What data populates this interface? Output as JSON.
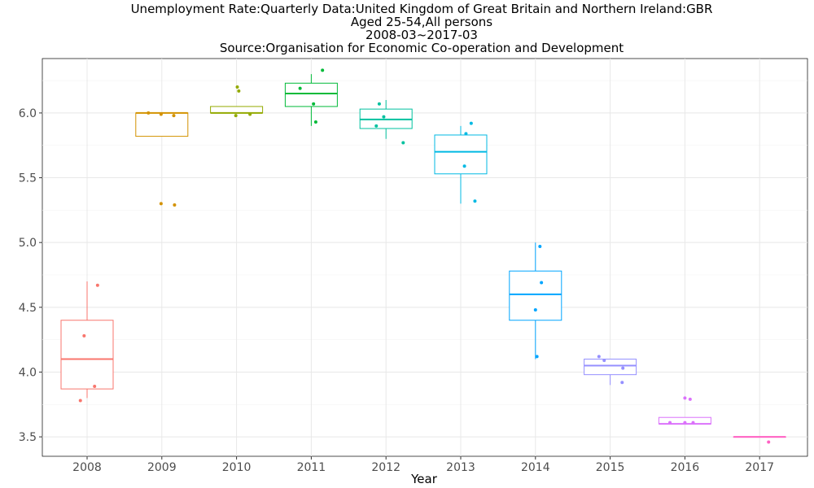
{
  "chart_data": {
    "type": "boxplot",
    "title_lines": [
      "Unemployment Rate:Quarterly Data:United Kingdom of Great Britain and Northern Ireland:GBR",
      "Aged 25-54,All persons",
      "2008-03~2017-03",
      "Source:Organisation for Economic Co-operation and Development"
    ],
    "xlabel": "Year",
    "ylabel": "",
    "ylim": [
      3.35,
      6.42
    ],
    "yticks": [
      3.5,
      4.0,
      4.5,
      5.0,
      5.5,
      6.0
    ],
    "ytick_labels": [
      "3.5",
      "4.0",
      "4.5",
      "5.0",
      "5.5",
      "6.0"
    ],
    "grid": true,
    "legend": "none",
    "categories": [
      "2008",
      "2009",
      "2010",
      "2011",
      "2012",
      "2013",
      "2014",
      "2015",
      "2016",
      "2017"
    ],
    "colors": [
      "#F8766D",
      "#D39200",
      "#93AA00",
      "#00BA38",
      "#00C19F",
      "#00B9E3",
      "#00A5FF",
      "#9590FF",
      "#DB72FB",
      "#FF61C3"
    ],
    "boxes": [
      {
        "year": "2008",
        "whisker_low": 3.8,
        "q1": 3.87,
        "median": 4.1,
        "q3": 4.4,
        "whisker_high": 4.7
      },
      {
        "year": "2009",
        "whisker_low": 5.82,
        "q1": 5.82,
        "median": 6.0,
        "q3": 6.0,
        "whisker_high": 6.0
      },
      {
        "year": "2010",
        "whisker_low": 6.0,
        "q1": 6.0,
        "median": 6.0,
        "q3": 6.05,
        "whisker_high": 6.05
      },
      {
        "year": "2011",
        "whisker_low": 5.9,
        "q1": 6.05,
        "median": 6.15,
        "q3": 6.23,
        "whisker_high": 6.3
      },
      {
        "year": "2012",
        "whisker_low": 5.8,
        "q1": 5.88,
        "median": 5.95,
        "q3": 6.03,
        "whisker_high": 6.1
      },
      {
        "year": "2013",
        "whisker_low": 5.3,
        "q1": 5.53,
        "median": 5.7,
        "q3": 5.83,
        "whisker_high": 5.9
      },
      {
        "year": "2014",
        "whisker_low": 4.1,
        "q1": 4.4,
        "median": 4.6,
        "q3": 4.78,
        "whisker_high": 5.0
      },
      {
        "year": "2015",
        "whisker_low": 3.9,
        "q1": 3.98,
        "median": 4.05,
        "q3": 4.1,
        "whisker_high": 4.1
      },
      {
        "year": "2016",
        "whisker_low": 3.6,
        "q1": 3.6,
        "median": 3.6,
        "q3": 3.65,
        "whisker_high": 3.65
      },
      {
        "year": "2017",
        "whisker_low": 3.5,
        "q1": 3.5,
        "median": 3.5,
        "q3": 3.5,
        "whisker_high": 3.5
      }
    ],
    "points": [
      {
        "year": "2008",
        "offset": -0.09,
        "value": 3.78
      },
      {
        "year": "2008",
        "offset": -0.04,
        "value": 4.28
      },
      {
        "year": "2008",
        "offset": 0.1,
        "value": 3.89
      },
      {
        "year": "2008",
        "offset": 0.14,
        "value": 4.67
      },
      {
        "year": "2009",
        "offset": -0.18,
        "value": 6.0
      },
      {
        "year": "2009",
        "offset": -0.01,
        "value": 5.99
      },
      {
        "year": "2009",
        "offset": 0.16,
        "value": 5.98
      },
      {
        "year": "2009",
        "offset": -0.01,
        "value": 5.3
      },
      {
        "year": "2009",
        "offset": 0.17,
        "value": 5.29
      },
      {
        "year": "2010",
        "offset": -0.01,
        "value": 5.98
      },
      {
        "year": "2010",
        "offset": 0.01,
        "value": 6.2
      },
      {
        "year": "2010",
        "offset": 0.03,
        "value": 6.17
      },
      {
        "year": "2010",
        "offset": 0.18,
        "value": 5.99
      },
      {
        "year": "2011",
        "offset": -0.15,
        "value": 6.19
      },
      {
        "year": "2011",
        "offset": 0.03,
        "value": 6.07
      },
      {
        "year": "2011",
        "offset": 0.06,
        "value": 5.93
      },
      {
        "year": "2011",
        "offset": 0.15,
        "value": 6.33
      },
      {
        "year": "2012",
        "offset": -0.13,
        "value": 5.9
      },
      {
        "year": "2012",
        "offset": -0.09,
        "value": 6.07
      },
      {
        "year": "2012",
        "offset": -0.03,
        "value": 5.97
      },
      {
        "year": "2012",
        "offset": 0.23,
        "value": 5.77
      },
      {
        "year": "2013",
        "offset": 0.05,
        "value": 5.59
      },
      {
        "year": "2013",
        "offset": 0.07,
        "value": 5.84
      },
      {
        "year": "2013",
        "offset": 0.14,
        "value": 5.92
      },
      {
        "year": "2013",
        "offset": 0.19,
        "value": 5.32
      },
      {
        "year": "2014",
        "offset": 0.0,
        "value": 4.48
      },
      {
        "year": "2014",
        "offset": 0.02,
        "value": 4.12
      },
      {
        "year": "2014",
        "offset": 0.06,
        "value": 4.97
      },
      {
        "year": "2014",
        "offset": 0.08,
        "value": 4.69
      },
      {
        "year": "2015",
        "offset": -0.15,
        "value": 4.12
      },
      {
        "year": "2015",
        "offset": -0.08,
        "value": 4.09
      },
      {
        "year": "2015",
        "offset": 0.17,
        "value": 4.03
      },
      {
        "year": "2015",
        "offset": 0.16,
        "value": 3.92
      },
      {
        "year": "2016",
        "offset": -0.2,
        "value": 3.61
      },
      {
        "year": "2016",
        "offset": 0.0,
        "value": 3.8
      },
      {
        "year": "2016",
        "offset": 0.0,
        "value": 3.61
      },
      {
        "year": "2016",
        "offset": 0.07,
        "value": 3.79
      },
      {
        "year": "2016",
        "offset": 0.11,
        "value": 3.61
      },
      {
        "year": "2017",
        "offset": 0.12,
        "value": 3.46
      }
    ]
  }
}
